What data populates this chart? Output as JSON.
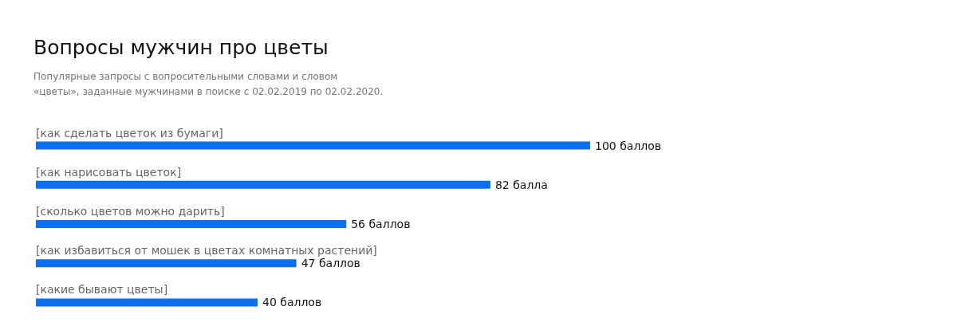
{
  "chart_data": {
    "type": "bar",
    "orientation": "horizontal",
    "title": "Вопросы мужчин про цветы",
    "subtitle": "Популярные запросы с вопросительными словами и словом «цветы», заданные мужчинами в поиске с 02.02.2019 по 02.02.2020.",
    "categories": [
      "[как сделать цветок из бумаги]",
      "[как нарисовать цветок]",
      "[сколько цветов можно дарить]",
      "[как избавиться от мошек в цветах комнатных растений]",
      "[какие бывают цветы]"
    ],
    "values": [
      100,
      82,
      56,
      47,
      40
    ],
    "value_labels": [
      "100 баллов",
      "82 балла",
      "56 баллов",
      "47 баллов",
      "40 баллов"
    ],
    "color": "#0c6ff2",
    "grid": false
  }
}
